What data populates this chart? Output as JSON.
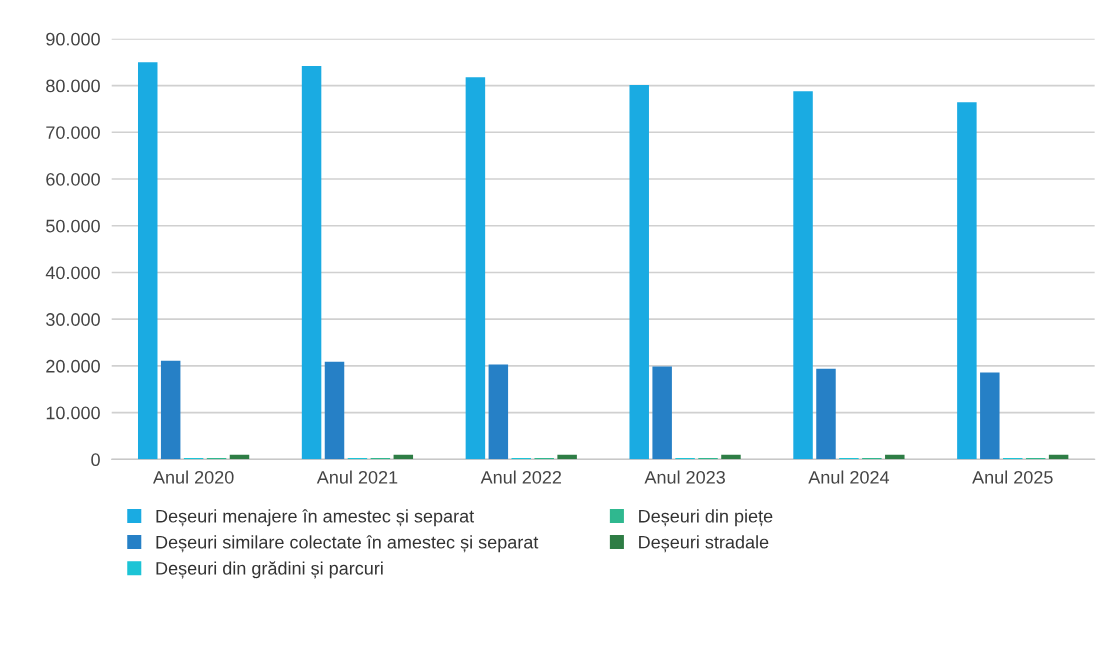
{
  "chart_data": {
    "type": "bar",
    "categories": [
      "Anul 2020",
      "Anul 2021",
      "Anul 2022",
      "Anul 2023",
      "Anul 2024",
      "Anul 2025"
    ],
    "series": [
      {
        "name": "Deșeuri menajere în amestec și separat",
        "color": "#1aabe2",
        "values": [
          85000,
          84200,
          81800,
          80100,
          78800,
          76400
        ]
      },
      {
        "name": "Deșeuri similare colectate în amestec și separat",
        "color": "#2680c6",
        "values": [
          21100,
          20900,
          20300,
          19900,
          19400,
          18600
        ]
      },
      {
        "name": "Deșeuri din grădini și parcuri",
        "color": "#1cc4d6",
        "values": [
          300,
          300,
          300,
          300,
          300,
          300
        ]
      },
      {
        "name": "Deșeuri din piețe",
        "color": "#2fb88f",
        "values": [
          300,
          300,
          300,
          300,
          300,
          300
        ]
      },
      {
        "name": "Deșeuri stradale",
        "color": "#2e7d45",
        "values": [
          1000,
          1000,
          1000,
          1000,
          1000,
          1000
        ]
      }
    ],
    "ylim": [
      0,
      90000
    ],
    "yticks": [
      {
        "value": 0,
        "label": "0"
      },
      {
        "value": 10000,
        "label": "10.000"
      },
      {
        "value": 20000,
        "label": "20.000"
      },
      {
        "value": 30000,
        "label": "30.000"
      },
      {
        "value": 40000,
        "label": "40.000"
      },
      {
        "value": 50000,
        "label": "50.000"
      },
      {
        "value": 60000,
        "label": "60.000"
      },
      {
        "value": 70000,
        "label": "70.000"
      },
      {
        "value": 80000,
        "label": "80.000"
      },
      {
        "value": 90000,
        "label": "90.000"
      }
    ],
    "grid": "y",
    "legend": "bottom"
  }
}
